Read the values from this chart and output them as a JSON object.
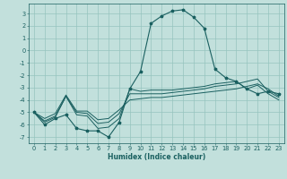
{
  "xlabel": "Humidex (Indice chaleur)",
  "xlim": [
    -0.5,
    23.5
  ],
  "ylim": [
    -7.5,
    3.8
  ],
  "yticks": [
    3,
    2,
    1,
    0,
    -1,
    -2,
    -3,
    -4,
    -5,
    -6,
    -7
  ],
  "xticks": [
    0,
    1,
    2,
    3,
    4,
    5,
    6,
    7,
    8,
    9,
    10,
    11,
    12,
    13,
    14,
    15,
    16,
    17,
    18,
    19,
    20,
    21,
    22,
    23
  ],
  "bg_color": "#c2e0dc",
  "grid_color": "#96c4be",
  "line_color": "#1a6060",
  "line1": [
    -5.0,
    -6.0,
    -5.5,
    -5.2,
    -6.3,
    -6.5,
    -6.5,
    -7.0,
    -5.8,
    -3.1,
    -1.7,
    2.2,
    2.8,
    3.2,
    3.3,
    2.7,
    1.8,
    -1.5,
    -2.2,
    -2.5,
    -3.1,
    -3.5,
    -3.3,
    -3.5
  ],
  "line2": [
    -5.0,
    -5.8,
    -5.4,
    -3.7,
    -5.2,
    -5.3,
    -6.3,
    -6.2,
    -5.5,
    -3.1,
    -3.3,
    -3.2,
    -3.2,
    -3.2,
    -3.1,
    -3.0,
    -2.9,
    -2.7,
    -2.6,
    -2.5,
    -3.1,
    -2.8,
    -3.5,
    -4.0
  ],
  "line3": [
    -5.0,
    -5.7,
    -5.3,
    -3.7,
    -5.0,
    -5.1,
    -5.9,
    -5.8,
    -5.1,
    -3.5,
    -3.5,
    -3.5,
    -3.5,
    -3.4,
    -3.3,
    -3.2,
    -3.1,
    -2.9,
    -2.8,
    -2.7,
    -2.5,
    -2.3,
    -3.3,
    -3.8
  ],
  "line4": [
    -5.0,
    -5.5,
    -5.1,
    -3.6,
    -4.9,
    -4.9,
    -5.6,
    -5.5,
    -4.8,
    -4.0,
    -3.9,
    -3.8,
    -3.8,
    -3.7,
    -3.6,
    -3.5,
    -3.4,
    -3.3,
    -3.2,
    -3.1,
    -2.9,
    -2.7,
    -3.1,
    -3.7
  ],
  "xlabel_fontsize": 5.5,
  "tick_fontsize": 4.8,
  "ylabel_labels": [
    "3",
    "2",
    "1",
    "0",
    "-1",
    "-2",
    "-3",
    "-4",
    "-5",
    "-6",
    "-7"
  ],
  "xlabel_labels": [
    "0",
    "1",
    "2",
    "3",
    "4",
    "5",
    "6",
    "7",
    "8",
    "9",
    "10",
    "11",
    "12",
    "13",
    "14",
    "15",
    "16",
    "17",
    "18",
    "19",
    "20",
    "21",
    "22",
    "23"
  ]
}
